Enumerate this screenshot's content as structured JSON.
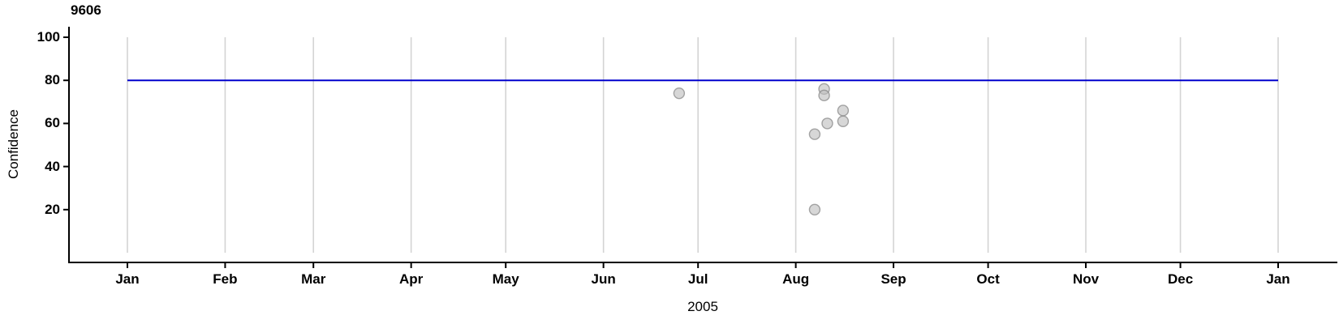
{
  "chart_data": {
    "type": "scatter",
    "title": "9606",
    "ylabel": "Confidence",
    "xlabel": "2005",
    "x_tick_labels": [
      "Jan",
      "Feb",
      "Mar",
      "Apr",
      "May",
      "Jun",
      "Jul",
      "Aug",
      "Sep",
      "Oct",
      "Nov",
      "Dec",
      "Jan"
    ],
    "y_ticks": [
      20,
      40,
      60,
      80,
      100
    ],
    "ylim": [
      0,
      100
    ],
    "x_range": [
      "2005-01-01",
      "2006-01-01"
    ],
    "grid": "vertical month gridlines only",
    "legend": "none",
    "reference_line": {
      "y": 80,
      "x_start": "2005-01-01",
      "x_end": "2006-01-01",
      "color": "#0000cd"
    },
    "points": [
      {
        "date": "2005-06-25",
        "confidence": 74
      },
      {
        "date": "2005-08-10",
        "confidence": 76
      },
      {
        "date": "2005-08-10",
        "confidence": 73
      },
      {
        "date": "2005-08-16",
        "confidence": 66
      },
      {
        "date": "2005-08-16",
        "confidence": 61
      },
      {
        "date": "2005-08-11",
        "confidence": 60
      },
      {
        "date": "2005-08-07",
        "confidence": 55
      },
      {
        "date": "2005-08-07",
        "confidence": 20
      }
    ],
    "colors": {
      "point_fill": "#bebebe",
      "point_stroke": "#8a8a8a",
      "gridline": "#d4d4d4",
      "axis": "#000000",
      "reference_line": "#0000cd"
    }
  }
}
